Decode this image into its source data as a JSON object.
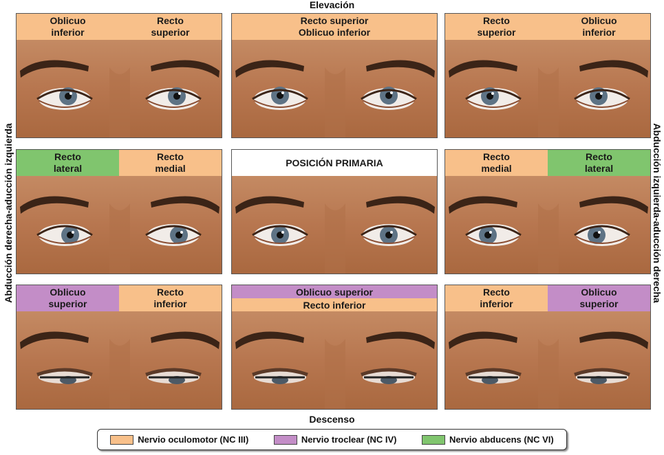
{
  "axes": {
    "top": "Elevación",
    "bottom": "Descenso",
    "left": "Abducción derecha-aducción izquierda",
    "right": "Abducción izquierda-aducción derecha"
  },
  "colors": {
    "oculomotor": "#f8c08a",
    "troclear": "#c38dc7",
    "abducens": "#80c56e"
  },
  "panels": [
    {
      "labels": [
        "Oblicuo\ninferior",
        "Recto\nsuperior"
      ],
      "colors": [
        "orange",
        "orange"
      ],
      "gaze": "up-right"
    },
    {
      "labels": [
        "Recto superior\nOblicuo inferior"
      ],
      "colors": [
        "orange"
      ],
      "gaze": "up"
    },
    {
      "labels": [
        "Recto\nsuperior",
        "Oblicuo\ninferior"
      ],
      "colors": [
        "orange",
        "orange"
      ],
      "gaze": "up-left"
    },
    {
      "labels": [
        "Recto\nlateral",
        "Recto\nmedial"
      ],
      "colors": [
        "green",
        "orange"
      ],
      "gaze": "right"
    },
    {
      "labels": [
        "POSICIÓN PRIMARIA"
      ],
      "colors": [
        "white"
      ],
      "gaze": "center"
    },
    {
      "labels": [
        "Recto\nmedial",
        "Recto\nlateral"
      ],
      "colors": [
        "orange",
        "green"
      ],
      "gaze": "left"
    },
    {
      "labels": [
        "Oblicuo\nsuperior",
        "Recto\ninferior"
      ],
      "colors": [
        "purple",
        "orange"
      ],
      "gaze": "down-right"
    },
    {
      "labels": [
        "Oblicuo superior",
        "Recto inferior"
      ],
      "colors": [
        "purple",
        "orange"
      ],
      "stacked": true,
      "gaze": "down"
    },
    {
      "labels": [
        "Recto\ninferior",
        "Oblicuo\nsuperior"
      ],
      "colors": [
        "orange",
        "purple"
      ],
      "gaze": "down-left"
    }
  ],
  "legend": [
    {
      "label": "Nervio oculomotor (NC III)",
      "color": "#f8c08a"
    },
    {
      "label": "Nervio troclear (NC IV)",
      "color": "#c38dc7"
    },
    {
      "label": "Nervio abducens (NC VI)",
      "color": "#80c56e"
    }
  ]
}
